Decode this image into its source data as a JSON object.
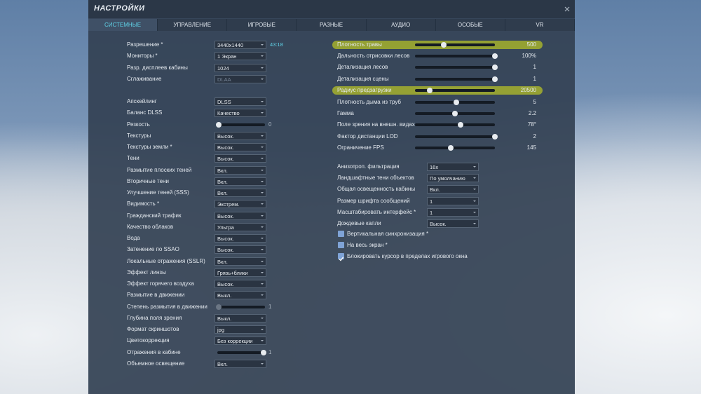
{
  "header": {
    "title": "НАСТРОЙКИ"
  },
  "tabs": {
    "active": 0,
    "items": [
      "СИСТЕМНЫЕ",
      "УПРАВЛЕНИЕ",
      "ИГРОВЫЕ",
      "РАЗНЫЕ",
      "АУДИО",
      "ОСОБЫЕ",
      "VR"
    ]
  },
  "left": [
    {
      "label": "Разрешение *",
      "control": "select",
      "value": "3440x1440",
      "extra": "43:18"
    },
    {
      "label": "Мониторы *",
      "control": "select",
      "value": "1 Экран"
    },
    {
      "label": "Разр. дисплеев кабины",
      "control": "select",
      "value": "1024"
    },
    {
      "label": "Сглаживание",
      "control": "select",
      "value": "DLAA",
      "disabled": true
    },
    {
      "label": "Апскейлинг",
      "control": "select",
      "value": "DLSS",
      "gap": true
    },
    {
      "label": "Баланс DLSS",
      "control": "select",
      "value": "Качество"
    },
    {
      "label": "Резкость",
      "control": "slider",
      "value": "0",
      "thumb": 0
    },
    {
      "label": "Текстуры",
      "control": "select",
      "value": "Высок."
    },
    {
      "label": "Текстуры земли *",
      "control": "select",
      "value": "Высок."
    },
    {
      "label": "Тени",
      "control": "select",
      "value": "Высок."
    },
    {
      "label": "Размытие плоских теней",
      "control": "select",
      "value": "Вкл."
    },
    {
      "label": "Вторичные тени",
      "control": "select",
      "value": "Вкл."
    },
    {
      "label": "Улучшение теней (SSS)",
      "control": "select",
      "value": "Вкл."
    },
    {
      "label": "Видимость *",
      "control": "select",
      "value": "Экстрем."
    },
    {
      "label": "Гражданский трафик",
      "control": "select",
      "value": "Высок."
    },
    {
      "label": "Качество облаков",
      "control": "select",
      "value": "Ультра"
    },
    {
      "label": "Вода",
      "control": "select",
      "value": "Высок."
    },
    {
      "label": "Затенение по SSAO",
      "control": "select",
      "value": "Высок."
    },
    {
      "label": "Локальные отражения (SSLR)",
      "control": "select",
      "value": "Вкл."
    },
    {
      "label": "Эффект линзы",
      "control": "select",
      "value": "Грязь+блики"
    },
    {
      "label": "Эффект горячего воздуха",
      "control": "select",
      "value": "Высок."
    },
    {
      "label": "Размытие в движении",
      "control": "select",
      "value": "Выкл."
    },
    {
      "label": "Степень размытия в движении",
      "control": "slider",
      "value": "1",
      "thumb": 0,
      "disabled": true
    },
    {
      "label": "Глубина поля зрения",
      "control": "select",
      "value": "Выкл."
    },
    {
      "label": "Формат скриншотов",
      "control": "select",
      "value": "jpg"
    },
    {
      "label": "Цветокоррекция",
      "control": "select",
      "value": "Без коррекции"
    },
    {
      "label": "Отражения в кабине",
      "control": "slider",
      "value": "1",
      "thumb": 1
    },
    {
      "label": "Объемное освещение",
      "control": "select",
      "value": "Вкл."
    }
  ],
  "right_sliders": [
    {
      "label": "Плотность травы",
      "value": "500",
      "thumb": 0.34,
      "highlighted": true
    },
    {
      "label": "Дальность отрисовки лесов",
      "value": "100%",
      "thumb": 1
    },
    {
      "label": "Детализация лесов",
      "value": "1",
      "thumb": 1
    },
    {
      "label": "Детализация сцены",
      "value": "1",
      "thumb": 1
    },
    {
      "label": "Радиус предзагрузки",
      "value": "20500",
      "thumb": 0.15,
      "highlighted": true
    },
    {
      "label": "Плотность дыма из труб",
      "value": "5",
      "thumb": 0.5
    },
    {
      "label": "Гамма",
      "value": "2.2",
      "thumb": 0.48
    },
    {
      "label": "Поле зрения на внешн. видах",
      "value": "78°",
      "thumb": 0.55
    },
    {
      "label": "Фактор дистанции LOD",
      "value": "2",
      "thumb": 1
    },
    {
      "label": "Ограничение FPS",
      "value": "145",
      "thumb": 0.43
    }
  ],
  "right_selects": [
    {
      "label": "Анизотроп. фильтрация",
      "value": "16x"
    },
    {
      "label": "Ландшафтные тени объектов",
      "value": "По умолчанию"
    },
    {
      "label": "Общая освещенность кабины",
      "value": "Вкл."
    },
    {
      "label": "Размер шрифта сообщений",
      "value": "1"
    },
    {
      "label": "Масштабировать интерфейс *",
      "value": "1"
    },
    {
      "label": "Дождевые капли",
      "value": "Высок."
    }
  ],
  "checkboxes": [
    {
      "label": "Вертикальная синхронизация *",
      "checked": false
    },
    {
      "label": "На весь экран *",
      "checked": false
    },
    {
      "label": "Блокировать курсор в пределах игрового окна",
      "checked": true
    }
  ]
}
